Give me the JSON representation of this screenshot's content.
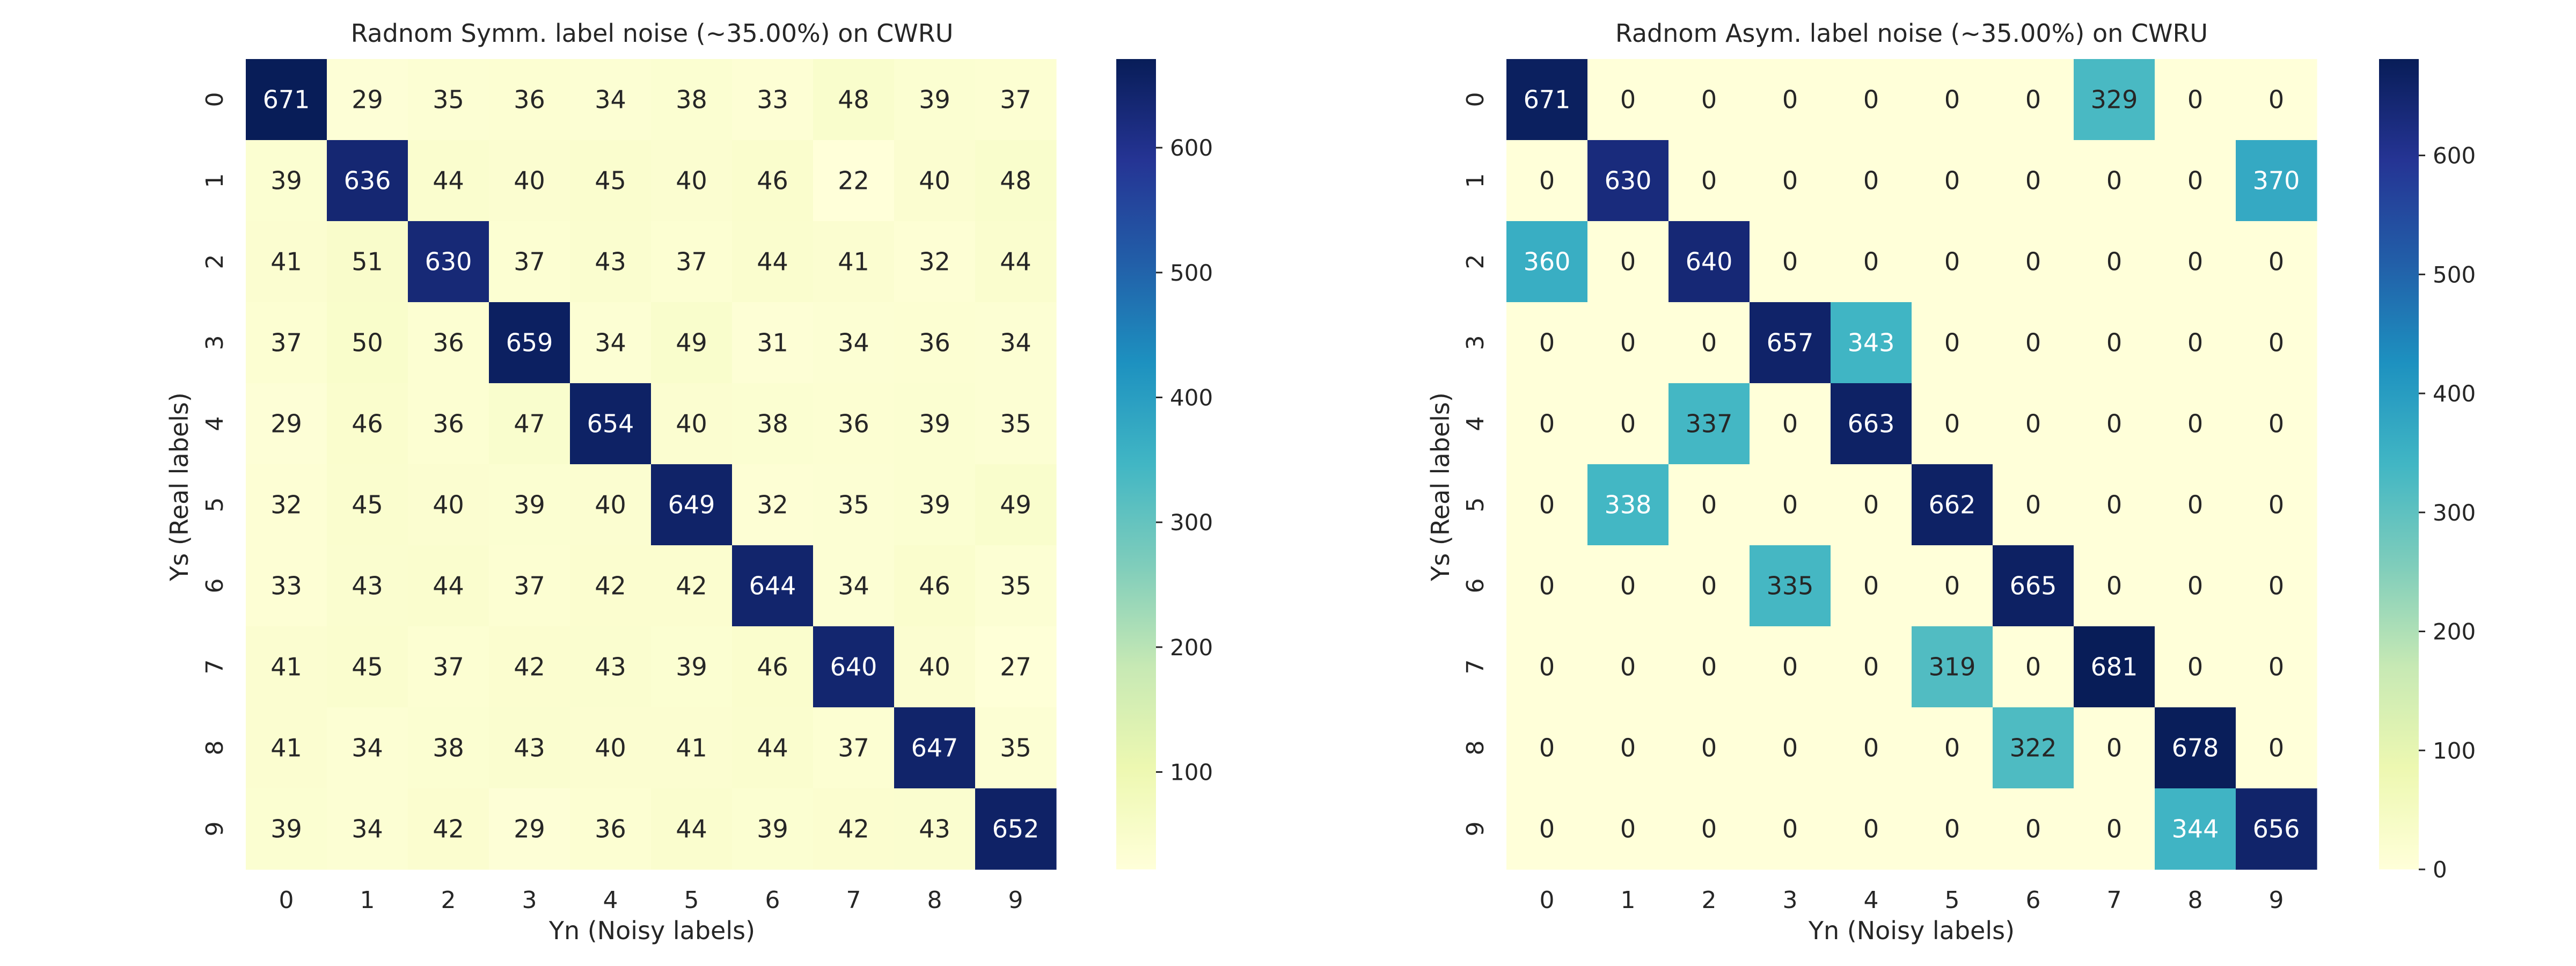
{
  "chart_data": [
    {
      "type": "heatmap",
      "title": "Radnom Symm. label noise (~35.00%) on CWRU",
      "xlabel": "Yn (Noisy labels)",
      "ylabel": "Ys (Real labels)",
      "x_categories": [
        "0",
        "1",
        "2",
        "3",
        "4",
        "5",
        "6",
        "7",
        "8",
        "9"
      ],
      "y_categories": [
        "0",
        "1",
        "2",
        "3",
        "4",
        "5",
        "6",
        "7",
        "8",
        "9"
      ],
      "values": [
        [
          671,
          29,
          35,
          36,
          34,
          38,
          33,
          48,
          39,
          37
        ],
        [
          39,
          636,
          44,
          40,
          45,
          40,
          46,
          22,
          40,
          48
        ],
        [
          41,
          51,
          630,
          37,
          43,
          37,
          44,
          41,
          32,
          44
        ],
        [
          37,
          50,
          36,
          659,
          34,
          49,
          31,
          34,
          36,
          34
        ],
        [
          29,
          46,
          36,
          47,
          654,
          40,
          38,
          36,
          39,
          35
        ],
        [
          32,
          45,
          40,
          39,
          40,
          649,
          32,
          35,
          39,
          49
        ],
        [
          33,
          43,
          44,
          37,
          42,
          42,
          644,
          34,
          46,
          35
        ],
        [
          41,
          45,
          37,
          42,
          43,
          39,
          46,
          640,
          40,
          27
        ],
        [
          41,
          34,
          38,
          43,
          40,
          41,
          44,
          37,
          647,
          35
        ],
        [
          39,
          34,
          42,
          29,
          36,
          44,
          39,
          42,
          43,
          652
        ]
      ],
      "colorscale": "YlGnBu",
      "colorbar": {
        "vmin": 22,
        "vmax": 671,
        "ticks": [
          100,
          200,
          300,
          400,
          500,
          600
        ]
      }
    },
    {
      "type": "heatmap",
      "title": "Radnom Asym. label noise (~35.00%) on CWRU",
      "xlabel": "Yn (Noisy labels)",
      "ylabel": "Ys (Real labels)",
      "x_categories": [
        "0",
        "1",
        "2",
        "3",
        "4",
        "5",
        "6",
        "7",
        "8",
        "9"
      ],
      "y_categories": [
        "0",
        "1",
        "2",
        "3",
        "4",
        "5",
        "6",
        "7",
        "8",
        "9"
      ],
      "values": [
        [
          671,
          0,
          0,
          0,
          0,
          0,
          0,
          329,
          0,
          0
        ],
        [
          0,
          630,
          0,
          0,
          0,
          0,
          0,
          0,
          0,
          370
        ],
        [
          360,
          0,
          640,
          0,
          0,
          0,
          0,
          0,
          0,
          0
        ],
        [
          0,
          0,
          0,
          657,
          343,
          0,
          0,
          0,
          0,
          0
        ],
        [
          0,
          0,
          337,
          0,
          663,
          0,
          0,
          0,
          0,
          0
        ],
        [
          0,
          338,
          0,
          0,
          0,
          662,
          0,
          0,
          0,
          0
        ],
        [
          0,
          0,
          0,
          335,
          0,
          0,
          665,
          0,
          0,
          0
        ],
        [
          0,
          0,
          0,
          0,
          0,
          319,
          0,
          681,
          0,
          0
        ],
        [
          0,
          0,
          0,
          0,
          0,
          0,
          322,
          0,
          678,
          0
        ],
        [
          0,
          0,
          0,
          0,
          0,
          0,
          0,
          0,
          344,
          656
        ]
      ],
      "colorscale": "YlGnBu",
      "colorbar": {
        "vmin": 0,
        "vmax": 681,
        "ticks": [
          0,
          100,
          200,
          300,
          400,
          500,
          600
        ]
      }
    }
  ]
}
